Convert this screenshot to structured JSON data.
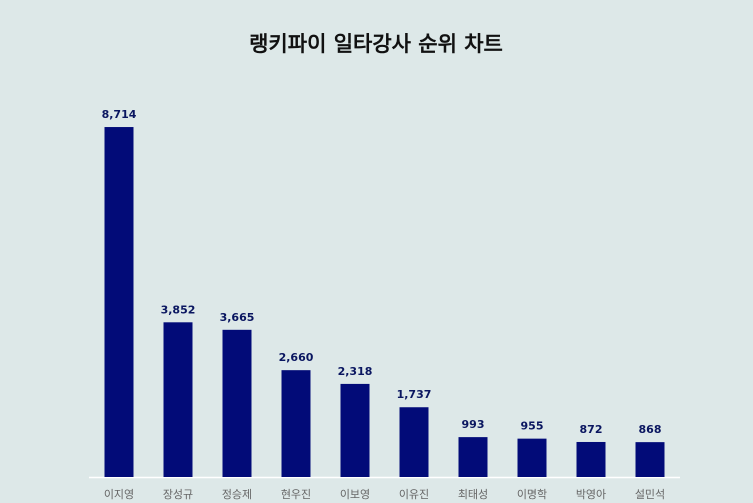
{
  "chart_data": {
    "type": "bar",
    "title": "랭키파이 일타강사 순위 차트",
    "categories": [
      "이지영",
      "장성규",
      "정승제",
      "현우진",
      "이보영",
      "이유진",
      "최태성",
      "이명학",
      "박영아",
      "설민석"
    ],
    "values": [
      8714,
      3852,
      3665,
      2660,
      2318,
      1737,
      993,
      955,
      872,
      868
    ],
    "value_labels": [
      "8,714",
      "3,852",
      "3,665",
      "2,660",
      "2,318",
      "1,737",
      "993",
      "955",
      "872",
      "868"
    ],
    "color": "#020b78",
    "ylim": [
      0,
      10000
    ]
  }
}
